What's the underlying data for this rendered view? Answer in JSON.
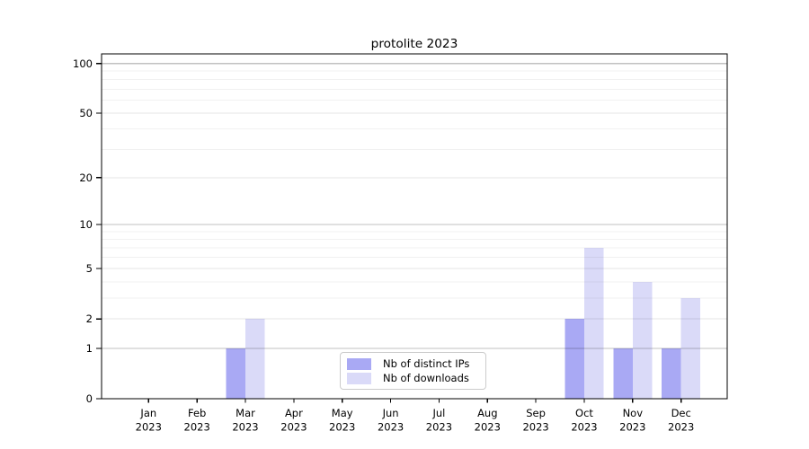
{
  "chart_data": {
    "type": "bar",
    "title": "protolite 2023",
    "year_label": "2023",
    "categories": [
      "Jan",
      "Feb",
      "Mar",
      "Apr",
      "May",
      "Jun",
      "Jul",
      "Aug",
      "Sep",
      "Oct",
      "Nov",
      "Dec"
    ],
    "series": [
      {
        "name": "Nb of distinct IPs",
        "color": "#a9a9f4",
        "values": [
          0,
          0,
          1,
          0,
          0,
          0,
          0,
          0,
          0,
          2,
          1,
          1
        ]
      },
      {
        "name": "Nb of downloads",
        "color": "#dadaf8",
        "values": [
          0,
          0,
          2,
          0,
          0,
          0,
          0,
          0,
          0,
          7,
          4,
          3
        ]
      }
    ],
    "y_axis": {
      "scale": "log10(1+v)",
      "ticks": [
        0,
        1,
        2,
        5,
        10,
        20,
        50,
        100
      ],
      "decade_gridlines": [
        1,
        10,
        100
      ],
      "mid_gridlines": [
        2,
        5,
        20,
        50
      ],
      "minor_gridlines": [
        3,
        4,
        6,
        7,
        8,
        9,
        30,
        40,
        60,
        70,
        80,
        90
      ],
      "ymax": 115
    },
    "legend_position": "bottom-center",
    "grid": "on",
    "colors": {
      "axis": "#000000",
      "decade_grid": "rgba(0,0,0,0.24)",
      "mid_grid": "rgba(0,0,0,0.10)",
      "minor_grid": "rgba(0,0,0,0.055)",
      "text": "#000000"
    }
  }
}
